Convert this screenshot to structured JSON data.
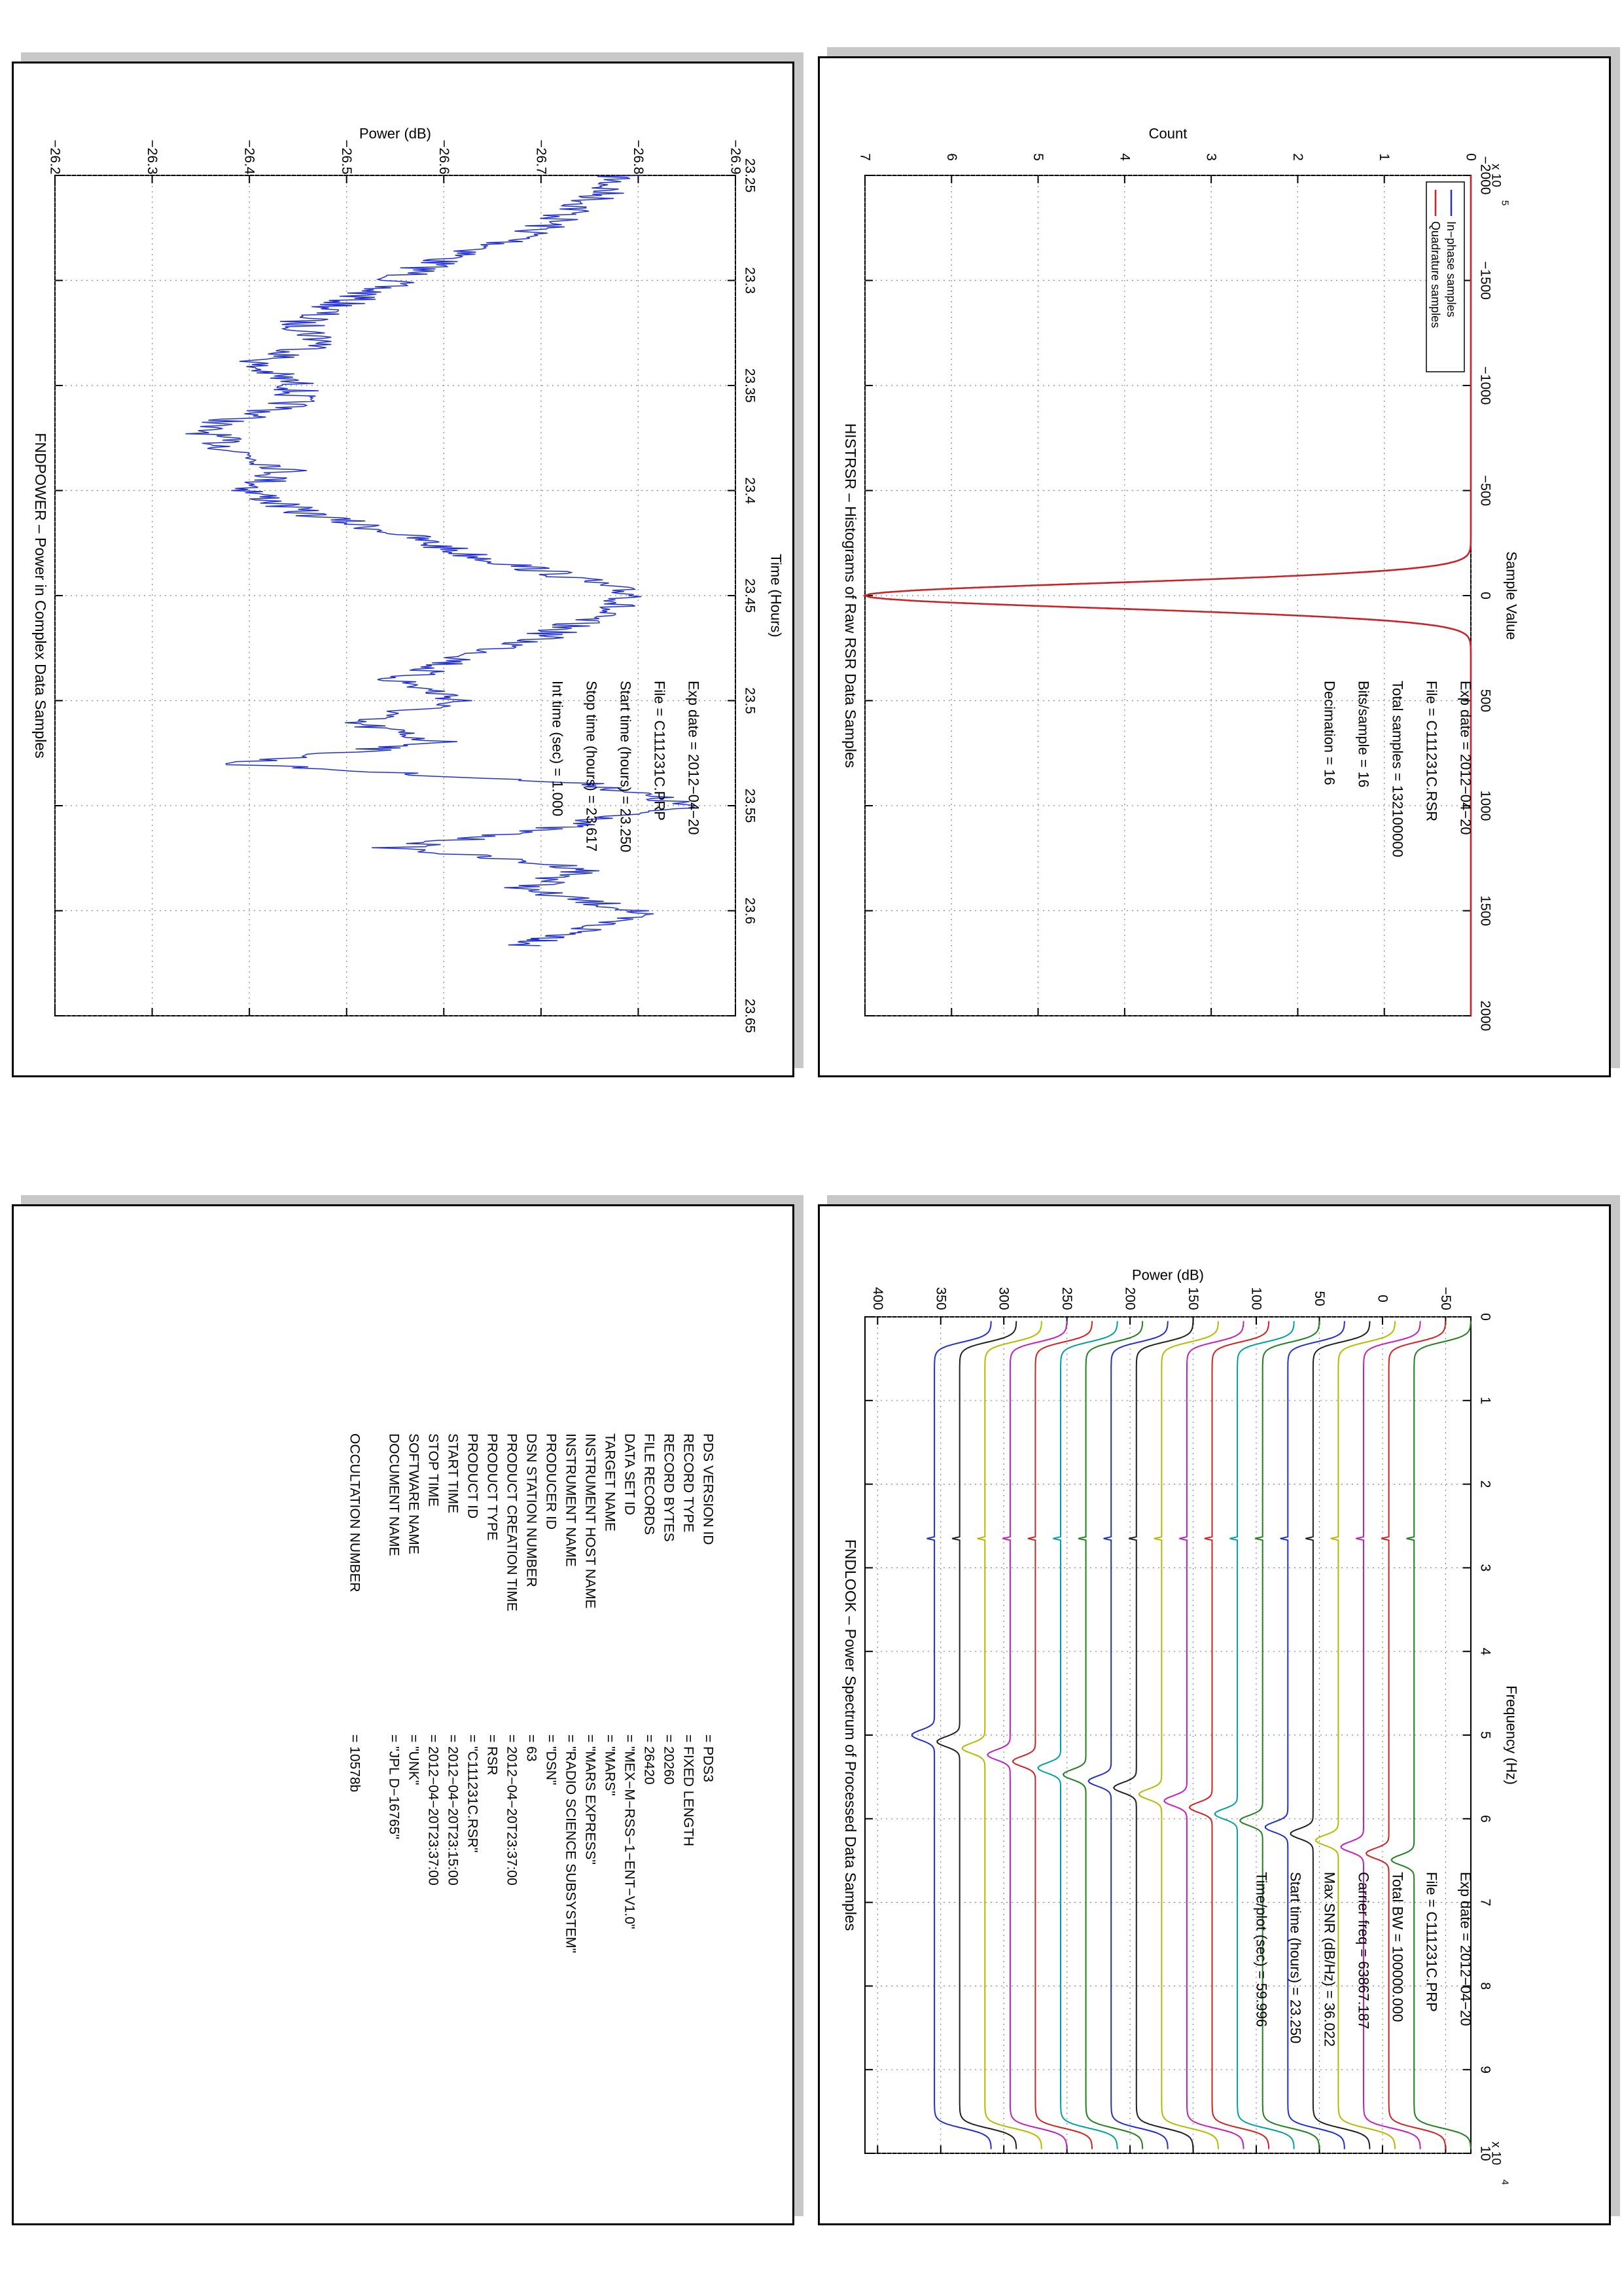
{
  "chart_data": [
    {
      "id": "histrsr",
      "type": "line",
      "title": "HISTRSR – Histograms of Raw RSR Data Samples",
      "xlabel": "Sample Value",
      "ylabel": "Count",
      "xlim": [
        -2000,
        2000
      ],
      "ylim": [
        0,
        7
      ],
      "y_multiplier": "x 10",
      "y_exponent": "5",
      "xticks": [
        "−2000",
        "−1500",
        "−1000",
        "−500",
        "0",
        "500",
        "1000",
        "1500",
        "2000"
      ],
      "yticks": [
        "0",
        "1",
        "2",
        "3",
        "4",
        "5",
        "6",
        "7"
      ],
      "grid": true,
      "legend_position": "top-left",
      "series": [
        {
          "name": "In−phase samples",
          "color": "#1f2fd6",
          "shape": "gaussian",
          "mean": 0,
          "sigma": 60,
          "peak": 7.0
        },
        {
          "name": "Quadrature samples",
          "color": "#d61f1f",
          "shape": "gaussian",
          "mean": 0,
          "sigma": 60,
          "peak": 7.0
        }
      ],
      "annotations": [
        "Exp date = 2012−04−20",
        "File = C111231C.RSR",
        "Total samples =  132100000",
        "Bits/sample    =       16",
        "Decimation     =       16"
      ]
    },
    {
      "id": "fndpower",
      "type": "line",
      "title": "FNDPOWER – Power in Complex Data Samples",
      "xlabel": "Time (Hours)",
      "ylabel": "Power (dB)",
      "xlim": [
        23.25,
        23.65
      ],
      "ylim": [
        -26.9,
        -26.2
      ],
      "xticks": [
        "23.25",
        "23.3",
        "23.35",
        "23.4",
        "23.45",
        "23.5",
        "23.55",
        "23.6",
        "23.65"
      ],
      "yticks": [
        "−26.9",
        "−26.8",
        "−26.7",
        "−26.6",
        "−26.5",
        "−26.4",
        "−26.3",
        "−26.2"
      ],
      "grid": true,
      "series": [
        {
          "name": "",
          "color": "#1f2fd6",
          "x": [
            23.25,
            23.26,
            23.27,
            23.28,
            23.29,
            23.3,
            23.31,
            23.32,
            23.33,
            23.34,
            23.35,
            23.36,
            23.37,
            23.38,
            23.39,
            23.4,
            23.41,
            23.42,
            23.43,
            23.44,
            23.45,
            23.46,
            23.47,
            23.48,
            23.49,
            23.5,
            23.51,
            23.52,
            23.53,
            23.54,
            23.55,
            23.56,
            23.57,
            23.58,
            23.59,
            23.6,
            23.61,
            23.617
          ],
          "y": [
            -26.78,
            -26.76,
            -26.72,
            -26.68,
            -26.6,
            -26.55,
            -26.5,
            -26.45,
            -26.48,
            -26.4,
            -26.45,
            -26.44,
            -26.35,
            -26.38,
            -26.44,
            -26.4,
            -26.45,
            -26.55,
            -26.62,
            -26.72,
            -26.8,
            -26.75,
            -26.7,
            -26.62,
            -26.55,
            -26.62,
            -26.5,
            -26.6,
            -26.38,
            -26.76,
            -26.85,
            -26.72,
            -26.55,
            -26.75,
            -26.68,
            -26.8,
            -26.74,
            -26.68
          ]
        }
      ],
      "annotations": [
        "Exp date = 2012−04−20",
        "File = C111231C.PRP",
        "Start time (hours) = 23.250",
        "Stop time (hours)  = 23.617",
        "Int time (sec) =        1.000"
      ]
    },
    {
      "id": "fndlook",
      "type": "line",
      "title": "FNDLOOK – Power Spectrum of Processed Data Samples",
      "xlabel": "Frequency (Hz)",
      "ylabel": "Power (dB)",
      "xlim": [
        0,
        10
      ],
      "ylim": [
        -70,
        410
      ],
      "x_multiplier": "x 10",
      "x_exponent": "4",
      "xticks": [
        "0",
        "1",
        "2",
        "3",
        "4",
        "5",
        "6",
        "7",
        "8",
        "9",
        "10"
      ],
      "yticks": [
        "−50",
        "0",
        "50",
        "100",
        "150",
        "200",
        "250",
        "300",
        "350",
        "400"
      ],
      "grid": true,
      "traces": {
        "count": 20,
        "baselines": [
          355,
          335,
          315,
          295,
          275,
          255,
          235,
          215,
          195,
          175,
          155,
          135,
          115,
          95,
          75,
          55,
          35,
          15,
          -5,
          -25
        ],
        "colors": [
          "#1f2fd6",
          "#202020",
          "#b8b800",
          "#c020c0",
          "#d61f1f",
          "#00a0a0",
          "#208020",
          "#1f2fd6",
          "#202020",
          "#b8b800",
          "#c020c0",
          "#d61f1f",
          "#00a0a0",
          "#208020",
          "#1f2fd6",
          "#202020",
          "#b8b800",
          "#c020c0",
          "#d61f1f",
          "#208020"
        ],
        "passband_drop": 45,
        "spike_freq": 2.65,
        "carrier_start": 5.0,
        "carrier_end": 6.5,
        "carrier_height": 18
      },
      "annotations": [
        "Exp date = 2012−04−20",
        "File = C111231C.PRP",
        "Total BW =      100000.000",
        "Carrier freq =   63867.187",
        "Max SNR (dB/Hz) =      36.022",
        "Start time (hours) =    23.250",
        "Time/plot (sec) =      59.996"
      ]
    }
  ],
  "label_table": {
    "labels": [
      "PDS VERSION ID",
      "RECORD TYPE",
      "RECORD BYTES",
      "FILE RECORDS",
      "DATA SET ID",
      "TARGET NAME",
      "INSTRUMENT HOST NAME",
      "INSTRUMENT NAME",
      "PRODUCER ID",
      "DSN STATION NUMBER",
      "PRODUCT CREATION TIME",
      "PRODUCT TYPE",
      "PRODUCT ID",
      "START TIME",
      "STOP TIME",
      "SOFTWARE NAME",
      "DOCUMENT NAME",
      "",
      "OCCULTATION NUMBER"
    ],
    "values": [
      "=   PDS3",
      "=   FIXED LENGTH",
      "=   20260",
      "=   26420",
      "=   \"MEX−M−RSS−1−ENT−V1.0\"",
      "=   \"MARS\"",
      "=   \"MARS EXPRESS\"",
      "=   \"RADIO SCIENCE SUBSYSTEM\"",
      "=   \"DSN\"",
      "=   63",
      "=   2012−04−20T23:37:00",
      "=   RSR",
      "=   \"C111231C.RSR\"",
      "=   2012−04−20T23:15:00",
      "=   2012−04−20T23:37:00",
      "=   \"UNK\"",
      "=   \"JPL D−16765\"",
      "",
      "=   10578b"
    ]
  }
}
